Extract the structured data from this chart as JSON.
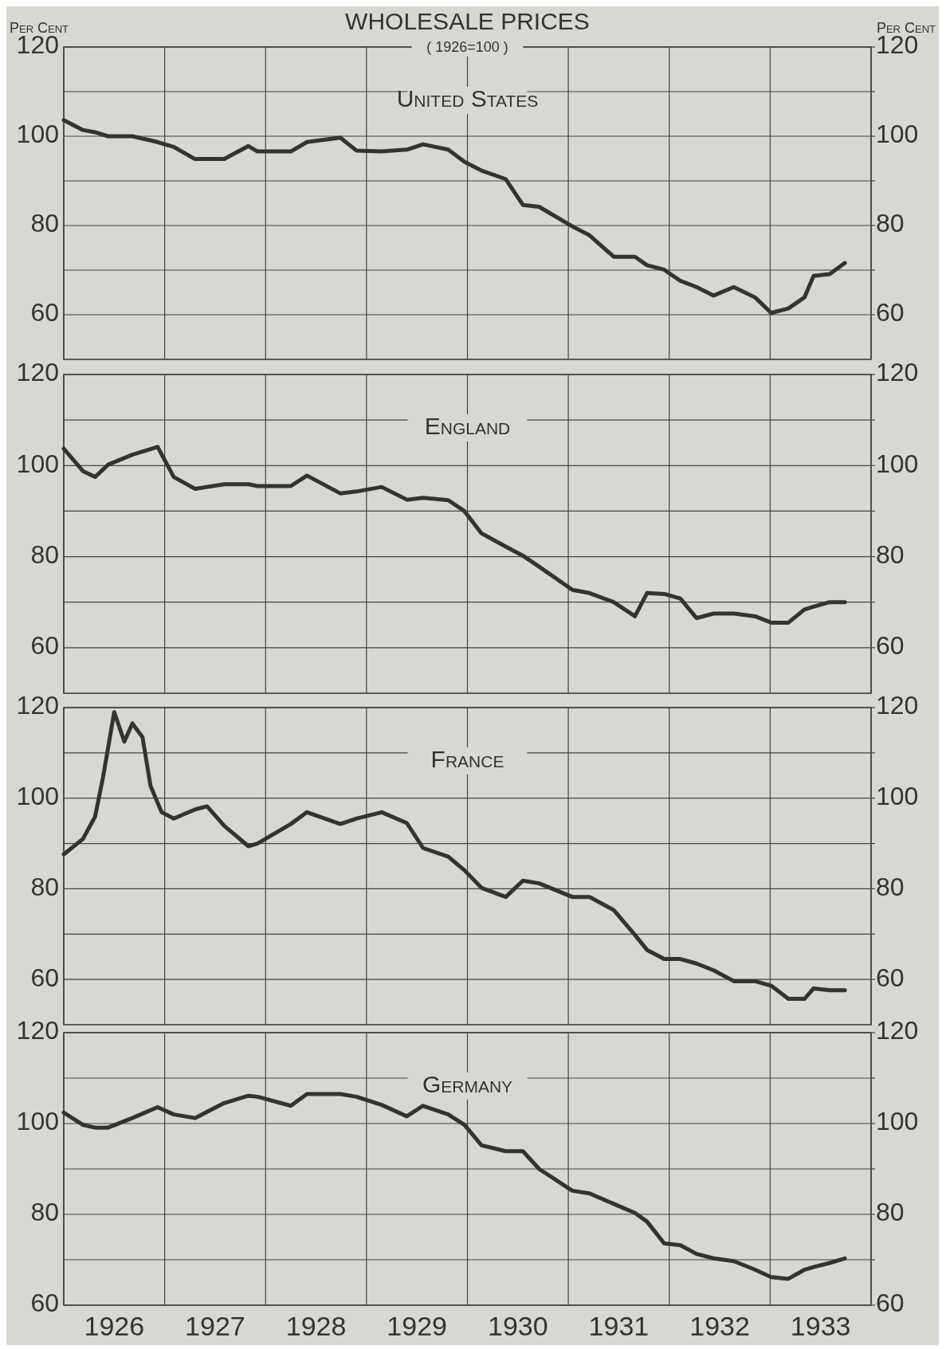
{
  "chart_data": [
    {
      "type": "line",
      "title": "WHOLESALE PRICES",
      "subtitle": "( 1926=100 )",
      "ylabel": "Per Cent",
      "y2label": "Per Cent",
      "xlim": [
        1926,
        1934
      ],
      "xticks": [
        {
          "value": 1926,
          "label": null
        },
        {
          "value": 1927,
          "label": null
        },
        {
          "value": 1928,
          "label": null
        },
        {
          "value": 1929,
          "label": null
        },
        {
          "value": 1930,
          "label": null
        },
        {
          "value": 1931,
          "label": null
        },
        {
          "value": 1932,
          "label": null
        },
        {
          "value": 1933,
          "label": null
        },
        {
          "value": 1934,
          "label": null
        }
      ],
      "ylim": [
        50,
        120
      ],
      "yticks": [
        60,
        {
          "value": 70,
          "label": null
        },
        80,
        {
          "value": 90,
          "label": null
        },
        100,
        {
          "value": 110,
          "label": null
        },
        120
      ],
      "y2lim": [
        50,
        120
      ],
      "y2ticks": [
        60,
        {
          "value": 70,
          "label": null
        },
        80,
        {
          "value": 90,
          "label": null
        },
        100,
        {
          "value": 110,
          "label": null
        },
        120
      ],
      "grid": true,
      "tick_labels": "y",
      "x": [
        1926.0,
        1926.19,
        1926.31,
        1926.44,
        1926.68,
        1926.93,
        1927.09,
        1927.3,
        1927.59,
        1927.83,
        1927.92,
        1928.25,
        1928.41,
        1928.74,
        1928.9,
        1929.15,
        1929.4,
        1929.56,
        1929.81,
        1929.97,
        1930.14,
        1930.38,
        1930.55,
        1930.71,
        1931.04,
        1931.21,
        1931.45,
        1931.66,
        1931.78,
        1931.95,
        1932.11,
        1932.27,
        1932.44,
        1932.64,
        1932.85,
        1933.01,
        1933.18,
        1933.34,
        1933.43,
        1933.59,
        1933.74
      ],
      "series": [
        {
          "name": "United States",
          "color": "#333333",
          "values": [
            103.6,
            101.4,
            100.9,
            100,
            100,
            98.7,
            97.6,
            94.9,
            94.9,
            97.8,
            96.6,
            96.6,
            98.7,
            99.7,
            96.8,
            96.6,
            97,
            98.2,
            97,
            94.3,
            92.3,
            90.4,
            84.6,
            84.2,
            79.8,
            77.8,
            73,
            73,
            71.1,
            70.1,
            67.6,
            66.2,
            64.3,
            66.2,
            63.9,
            60.4,
            61.4,
            63.9,
            68.7,
            69.1,
            71.6
          ]
        }
      ]
    },
    {
      "type": "line",
      "xlim": [
        1926,
        1934
      ],
      "xticks": [
        {
          "value": 1926,
          "label": null
        },
        {
          "value": 1927,
          "label": null
        },
        {
          "value": 1928,
          "label": null
        },
        {
          "value": 1929,
          "label": null
        },
        {
          "value": 1930,
          "label": null
        },
        {
          "value": 1931,
          "label": null
        },
        {
          "value": 1932,
          "label": null
        },
        {
          "value": 1933,
          "label": null
        },
        {
          "value": 1934,
          "label": null
        }
      ],
      "ylim": [
        50,
        120
      ],
      "yticks": [
        60,
        {
          "value": 70,
          "label": null
        },
        80,
        {
          "value": 90,
          "label": null
        },
        100,
        {
          "value": 110,
          "label": null
        },
        120
      ],
      "y2lim": [
        50,
        120
      ],
      "y2ticks": [
        60,
        {
          "value": 70,
          "label": null
        },
        80,
        {
          "value": 90,
          "label": null
        },
        100,
        {
          "value": 110,
          "label": null
        },
        120
      ],
      "grid": true,
      "tick_labels": "y",
      "x": [
        1926.0,
        1926.19,
        1926.31,
        1926.44,
        1926.68,
        1926.93,
        1927.09,
        1927.3,
        1927.59,
        1927.83,
        1927.92,
        1928.25,
        1928.41,
        1928.74,
        1928.9,
        1929.15,
        1929.4,
        1929.56,
        1929.81,
        1929.97,
        1930.14,
        1930.38,
        1930.55,
        1930.71,
        1931.04,
        1931.21,
        1931.45,
        1931.66,
        1931.78,
        1931.95,
        1932.11,
        1932.27,
        1932.44,
        1932.64,
        1932.85,
        1933.01,
        1933.18,
        1933.34,
        1933.43,
        1933.59,
        1933.74
      ],
      "series": [
        {
          "name": "England",
          "color": "#333333",
          "values": [
            103.7,
            98.8,
            97.5,
            100.2,
            102.4,
            104.1,
            97.5,
            94.9,
            95.9,
            95.9,
            95.5,
            95.5,
            97.8,
            93.9,
            94.3,
            95.3,
            92.5,
            92.9,
            92.4,
            90,
            85.1,
            82.2,
            80.2,
            77.8,
            72.7,
            72,
            70,
            66.9,
            72,
            71.8,
            70.8,
            66.5,
            67.5,
            67.5,
            66.9,
            65.5,
            65.5,
            68.4,
            69,
            70,
            70
          ]
        }
      ]
    },
    {
      "type": "line",
      "xlim": [
        1926,
        1934
      ],
      "xticks": [
        {
          "value": 1926,
          "label": null
        },
        {
          "value": 1927,
          "label": null
        },
        {
          "value": 1928,
          "label": null
        },
        {
          "value": 1929,
          "label": null
        },
        {
          "value": 1930,
          "label": null
        },
        {
          "value": 1931,
          "label": null
        },
        {
          "value": 1932,
          "label": null
        },
        {
          "value": 1933,
          "label": null
        },
        {
          "value": 1934,
          "label": null
        }
      ],
      "ylim": [
        50,
        120
      ],
      "yticks": [
        60,
        {
          "value": 70,
          "label": null
        },
        80,
        {
          "value": 90,
          "label": null
        },
        100,
        {
          "value": 110,
          "label": null
        },
        120
      ],
      "y2lim": [
        50,
        120
      ],
      "y2ticks": [
        60,
        {
          "value": 70,
          "label": null
        },
        80,
        {
          "value": 90,
          "label": null
        },
        100,
        {
          "value": 110,
          "label": null
        },
        120
      ],
      "grid": true,
      "tick_labels": "y",
      "x": [
        1926.0,
        1926.19,
        1926.31,
        1926.39,
        1926.5,
        1926.6,
        1926.68,
        1926.78,
        1926.86,
        1926.97,
        1927.09,
        1927.3,
        1927.42,
        1927.59,
        1927.83,
        1927.92,
        1928.25,
        1928.41,
        1928.74,
        1928.9,
        1929.15,
        1929.4,
        1929.56,
        1929.81,
        1929.97,
        1930.14,
        1930.38,
        1930.55,
        1930.71,
        1931.04,
        1931.21,
        1931.45,
        1931.66,
        1931.78,
        1931.95,
        1932.11,
        1932.27,
        1932.44,
        1932.64,
        1932.85,
        1933.01,
        1933.18,
        1933.34,
        1933.43,
        1933.59,
        1933.74
      ],
      "series": [
        {
          "name": "France",
          "color": "#333333",
          "values": [
            87.6,
            91,
            95.9,
            104.7,
            119,
            112.5,
            116.5,
            113.5,
            102.7,
            96.9,
            95.5,
            97.5,
            98.2,
            93.9,
            89.4,
            90,
            94.3,
            96.9,
            94.3,
            95.5,
            96.9,
            94.5,
            89,
            87.1,
            84.1,
            80.2,
            78.2,
            81.8,
            81.2,
            78.2,
            78.2,
            75.3,
            69.8,
            66.5,
            64.5,
            64.5,
            63.5,
            62,
            59.6,
            59.6,
            58.6,
            55.7,
            55.7,
            58,
            57.6,
            57.6
          ]
        }
      ]
    },
    {
      "type": "line",
      "xlim": [
        1926,
        1934
      ],
      "xticks": [
        {
          "value": 1926,
          "label": null
        },
        {
          "value": 1926.5,
          "label": "1926"
        },
        {
          "value": 1927,
          "label": null
        },
        {
          "value": 1927.5,
          "label": "1927"
        },
        {
          "value": 1928,
          "label": null
        },
        {
          "value": 1928.5,
          "label": "1928"
        },
        {
          "value": 1929,
          "label": null
        },
        {
          "value": 1929.5,
          "label": "1929"
        },
        {
          "value": 1930,
          "label": null
        },
        {
          "value": 1930.5,
          "label": "1930"
        },
        {
          "value": 1931,
          "label": null
        },
        {
          "value": 1931.5,
          "label": "1931"
        },
        {
          "value": 1932,
          "label": null
        },
        {
          "value": 1932.5,
          "label": "1932"
        },
        {
          "value": 1933,
          "label": null
        },
        {
          "value": 1933.5,
          "label": "1933"
        },
        {
          "value": 1934,
          "label": null
        }
      ],
      "ylim": [
        60,
        120
      ],
      "yticks": [
        60,
        {
          "value": 70,
          "label": null
        },
        80,
        {
          "value": 90,
          "label": null
        },
        100,
        {
          "value": 110,
          "label": null
        },
        120
      ],
      "y2lim": [
        60,
        120
      ],
      "y2ticks": [
        60,
        {
          "value": 70,
          "label": null
        },
        80,
        {
          "value": 90,
          "label": null
        },
        100,
        {
          "value": 110,
          "label": null
        },
        120
      ],
      "grid": true,
      "x": [
        1926.0,
        1926.19,
        1926.31,
        1926.44,
        1926.68,
        1926.93,
        1927.09,
        1927.3,
        1927.59,
        1927.83,
        1927.92,
        1928.25,
        1928.41,
        1928.74,
        1928.9,
        1929.15,
        1929.4,
        1929.56,
        1929.81,
        1929.97,
        1930.14,
        1930.38,
        1930.55,
        1930.71,
        1931.04,
        1931.21,
        1931.45,
        1931.66,
        1931.78,
        1931.95,
        1932.11,
        1932.27,
        1932.44,
        1932.64,
        1932.85,
        1933.01,
        1933.18,
        1933.34,
        1933.43,
        1933.59,
        1933.74
      ],
      "series": [
        {
          "name": "Germany",
          "color": "#333333",
          "values": [
            102.4,
            99.7,
            99.1,
            99.1,
            101.2,
            103.6,
            102,
            101.2,
            104.5,
            106.1,
            105.9,
            103.9,
            106.5,
            106.5,
            105.9,
            104.1,
            101.6,
            103.9,
            102,
            99.7,
            95.2,
            93.9,
            93.9,
            90,
            85.2,
            84.6,
            82.3,
            80.3,
            78.4,
            73.6,
            73.2,
            71.3,
            70.3,
            69.7,
            67.8,
            66.2,
            65.8,
            67.8,
            68.4,
            69.3,
            70.3
          ]
        }
      ]
    }
  ]
}
